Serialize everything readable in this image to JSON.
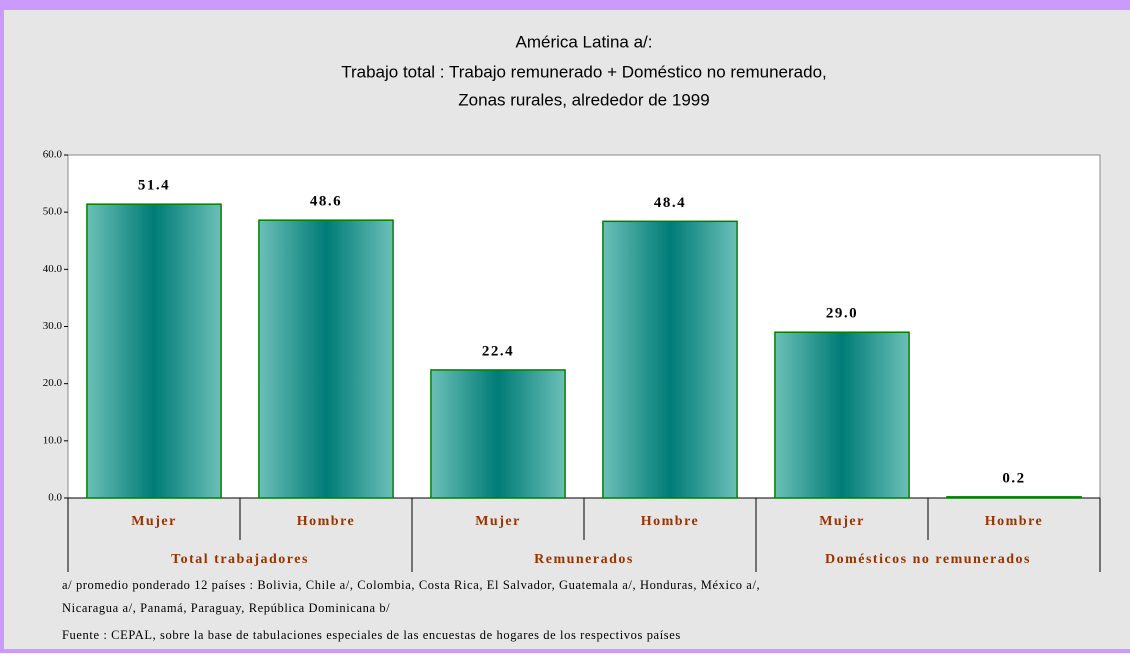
{
  "chart_data": {
    "type": "bar",
    "title": [
      "América Latina a/:",
      "Trabajo total : Trabajo remunerado + Doméstico no remunerado,",
      "Zonas rurales, alrededor de 1999"
    ],
    "categories": [
      "Mujer",
      "Hombre",
      "Mujer",
      "Hombre",
      "Mujer",
      "Hombre"
    ],
    "groups": [
      "Total trabajadores",
      "Remunerados",
      "Domésticos no remunerados"
    ],
    "values": [
      51.4,
      48.6,
      22.4,
      48.4,
      29.0,
      0.2
    ],
    "value_labels": [
      "51.4",
      "48.6",
      "22.4",
      "48.4",
      "29.0",
      "0.2"
    ],
    "color": "#008080",
    "ylim": [
      0,
      60
    ],
    "yticks": [
      {
        "value": 0,
        "label": "0.0"
      },
      {
        "value": 10,
        "label": "10.0"
      },
      {
        "value": 20,
        "label": "20.0"
      },
      {
        "value": 30,
        "label": "30.0"
      },
      {
        "value": 40,
        "label": "40.0"
      },
      {
        "value": 50,
        "label": "50.0"
      },
      {
        "value": 60,
        "label": "60.0"
      }
    ],
    "grid": false,
    "footnote": [
      "a/ promedio ponderado 12 países : Bolivia, Chile a/, Colombia, Costa Rica, El Salvador, Guatemala a/, Honduras, México a/,",
      "Nicaragua a/, Panamá, Paraguay, República Dominicana b/"
    ],
    "source": "Fuente : CEPAL, sobre la base de tabulaciones especiales de las encuestas de hogares de los respectivos países"
  }
}
